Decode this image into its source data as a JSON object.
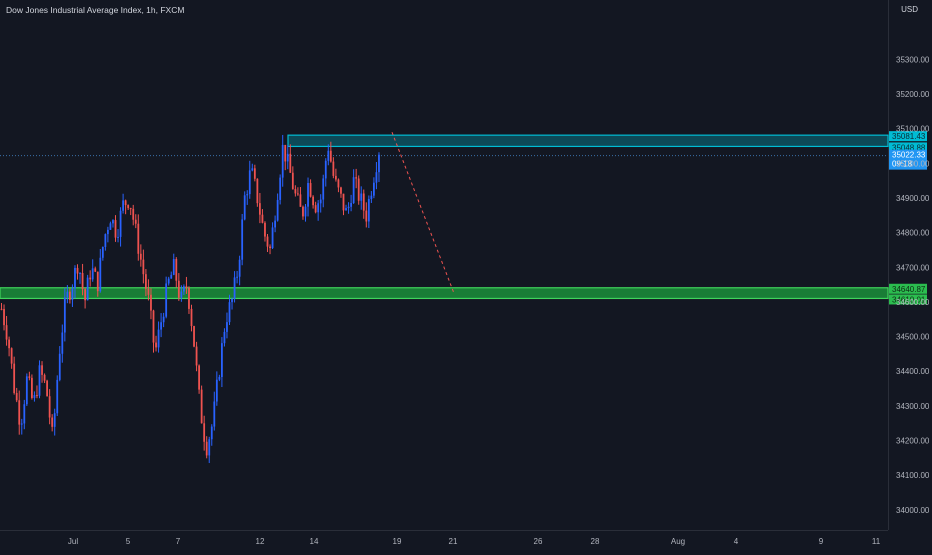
{
  "title": "Dow Jones Industrial Average Index, 1h, FXCM",
  "currency": "USD",
  "colors": {
    "background": "#131722",
    "bull": "#2962ff",
    "bear": "#ef5350",
    "resistance_zone": "#00bcd4",
    "support_zone": "#1b8f3a",
    "axis_text": "#b2b5be",
    "price_label_bg": "#2196f3"
  },
  "chart_data": {
    "type": "candlestick",
    "title": "Dow Jones Industrial Average Index, 1h, FXCM",
    "y_ticks": [
      "35300.00",
      "35200.00",
      "35100.00",
      "35000.00",
      "34900.00",
      "34800.00",
      "34700.00",
      "34600.00",
      "34500.00",
      "34400.00",
      "34300.00",
      "34200.00",
      "34100.00",
      "34000.00"
    ],
    "x_ticks": [
      "Jul",
      "5",
      "7",
      "12",
      "14",
      "19",
      "21",
      "26",
      "28",
      "Aug",
      "4",
      "9",
      "11"
    ],
    "ylim": [
      33950,
      35400
    ],
    "price_path": [
      34580,
      34500,
      34350,
      34250,
      34380,
      34300,
      34400,
      34350,
      34200,
      34450,
      34600,
      34650,
      34720,
      34600,
      34700,
      34650,
      34780,
      34850,
      34800,
      34880,
      34900,
      34800,
      34700,
      34600,
      34450,
      34550,
      34650,
      34700,
      34600,
      34650,
      34500,
      34300,
      34180,
      34250,
      34400,
      34550,
      34600,
      34700,
      34900,
      34980,
      34900,
      34800,
      34750,
      34900,
      35050,
      34980,
      34900,
      34850,
      34950,
      34880,
      34900,
      35060,
      34950,
      34900,
      34850,
      34950,
      34900,
      34850,
      34950,
      35040
    ],
    "zones": [
      {
        "name": "resistance",
        "top": 35081.43,
        "bottom": 35048.88,
        "labels": [
          "35081.43",
          "35048.88"
        ]
      },
      {
        "name": "support",
        "top": 34640.87,
        "bottom": 34610.01,
        "labels": [
          "34640.87",
          "34610.01"
        ]
      }
    ],
    "current_price": {
      "value": 35022.33,
      "label": "35022.33",
      "countdown": "09:18"
    },
    "projection": {
      "from_value": 35090,
      "to_value": 34625,
      "from_tick": "19",
      "to_tick": "21"
    },
    "grid": false,
    "legend": "none"
  }
}
